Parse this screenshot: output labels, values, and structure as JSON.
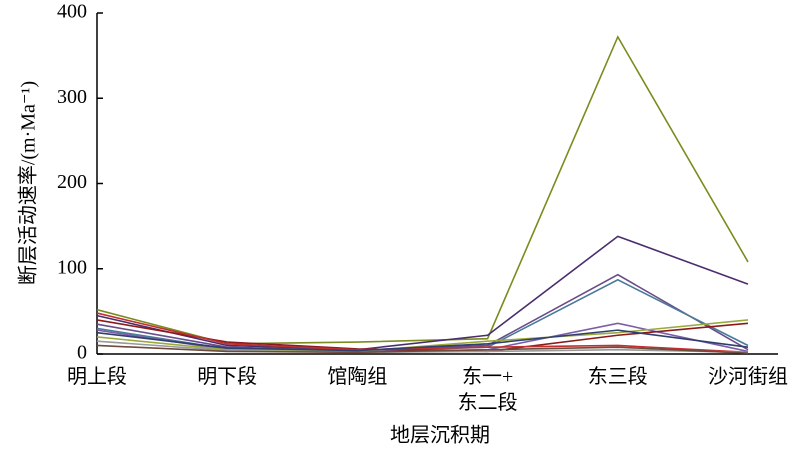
{
  "chart_data": {
    "type": "line",
    "y_label": "断层活动速率/(m·Ma⁻¹)",
    "x_label": "地层沉积期",
    "categories": [
      "明上段",
      "明下段",
      "馆陶组",
      "东一+\n东二段",
      "东三段",
      "沙河街组"
    ],
    "ylim": [
      0,
      400
    ],
    "yticks": [
      0,
      100,
      200,
      300,
      400
    ],
    "series": [
      {
        "color": "#7a8c1e",
        "values": [
          52,
          12,
          14,
          18,
          372,
          108
        ]
      },
      {
        "color": "#4b2d6e",
        "values": [
          45,
          10,
          5,
          22,
          138,
          82
        ]
      },
      {
        "color": "#6a4c8a",
        "values": [
          35,
          8,
          4,
          10,
          93,
          5
        ]
      },
      {
        "color": "#4a7a9a",
        "values": [
          30,
          6,
          3,
          8,
          87,
          10
        ]
      },
      {
        "color": "#7b5ea7",
        "values": [
          28,
          5,
          3,
          5,
          36,
          3
        ]
      },
      {
        "color": "#8b1a1a",
        "values": [
          40,
          14,
          6,
          3,
          22,
          36
        ]
      },
      {
        "color": "#9aaa3a",
        "values": [
          20,
          5,
          3,
          15,
          25,
          40
        ]
      },
      {
        "color": "#c03030",
        "values": [
          48,
          12,
          5,
          8,
          10,
          2
        ]
      },
      {
        "color": "#999999",
        "values": [
          15,
          4,
          2,
          3,
          5,
          2
        ]
      },
      {
        "color": "#2f3f6f",
        "values": [
          25,
          7,
          4,
          12,
          28,
          8
        ]
      },
      {
        "color": "#6d4c3d",
        "values": [
          10,
          3,
          2,
          5,
          8,
          1
        ]
      }
    ]
  }
}
